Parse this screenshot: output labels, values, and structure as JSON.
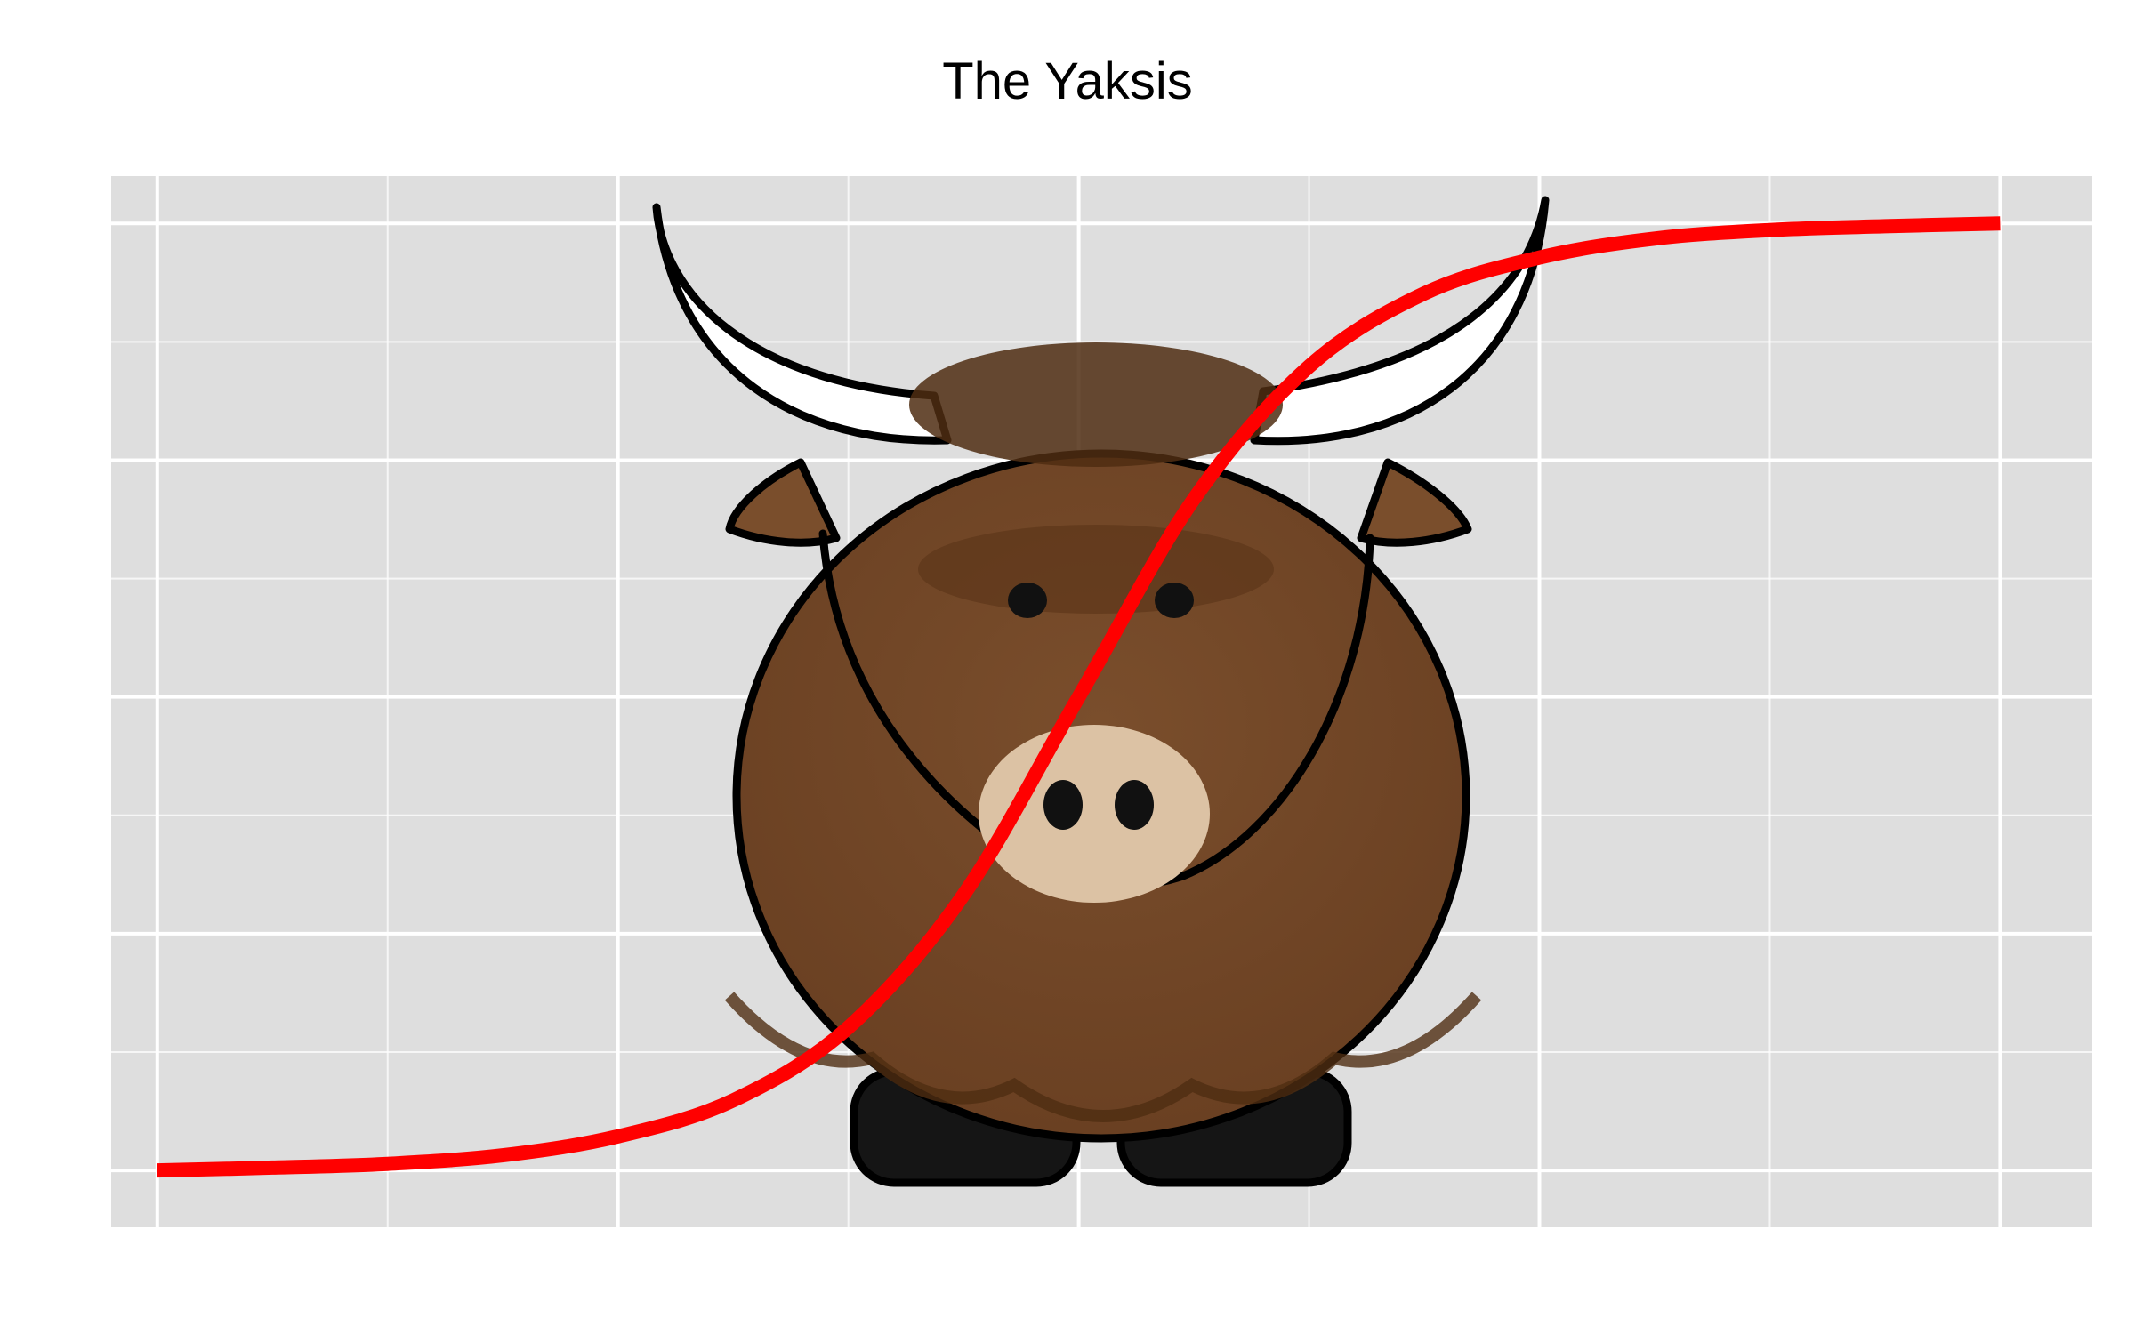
{
  "chart_data": {
    "type": "line",
    "title": "The Yaksis",
    "xlabel": "",
    "ylabel": "",
    "xlim": [
      -4.2,
      4.4
    ],
    "ylim": [
      -0.06,
      1.05
    ],
    "x_major_gridlines": [
      -4,
      -2,
      0,
      2,
      4
    ],
    "y_major_gridlines": [
      0,
      0.25,
      0.5,
      0.75,
      1
    ],
    "grid": true,
    "tick_labels_shown": false,
    "background_color": "#dedede",
    "grid_color": "#ffffff",
    "background_image": "yak-icon",
    "series": [
      {
        "color": "#ff0000",
        "x": [
          -4,
          -3.5,
          -3,
          -2.5,
          -2,
          -1.5,
          -1,
          -0.5,
          0,
          0.5,
          1,
          1.5,
          2,
          2.5,
          3,
          3.5,
          4
        ],
        "y": [
          0.0,
          0.003,
          0.007,
          0.016,
          0.036,
          0.074,
          0.151,
          0.291,
          0.5,
          0.709,
          0.849,
          0.926,
          0.964,
          0.984,
          0.993,
          0.997,
          1.0
        ]
      }
    ]
  }
}
